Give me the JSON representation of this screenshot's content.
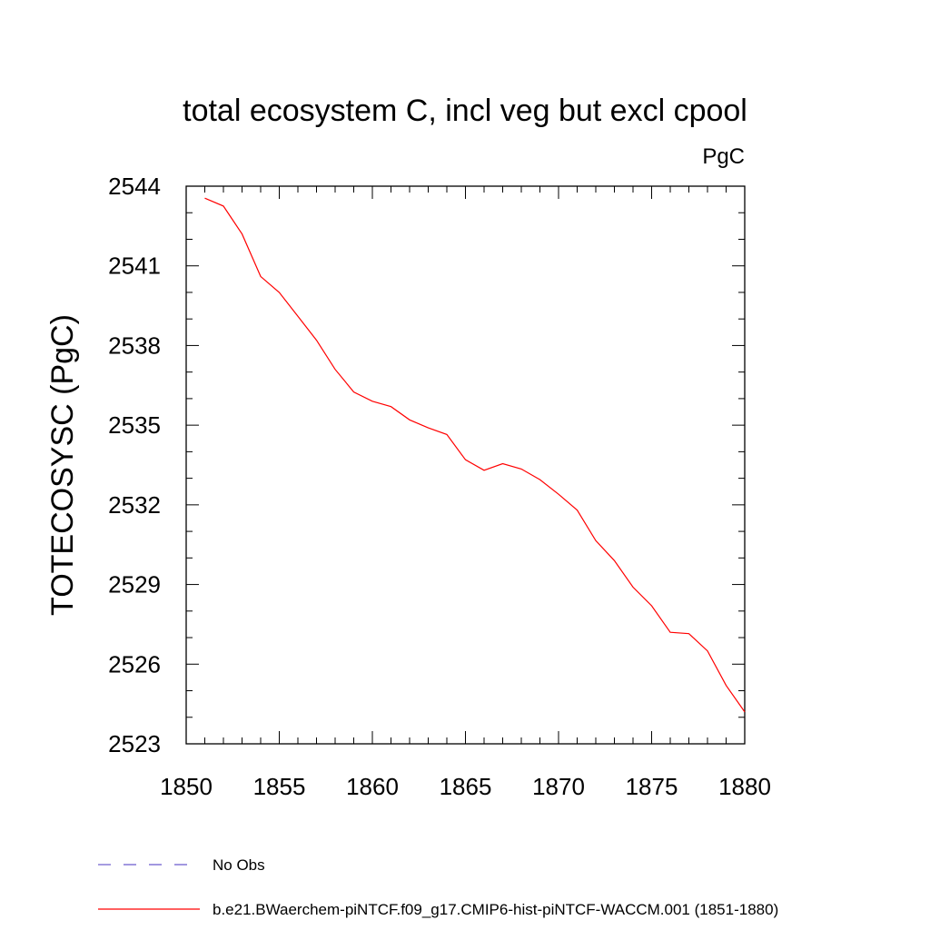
{
  "chart_data": {
    "type": "line",
    "title": "total ecosystem C, incl veg but excl cpool",
    "units_label": "PgC",
    "xlabel": "",
    "ylabel": "TOTECOSYSC  (PgC)",
    "xlim": [
      1850,
      1880
    ],
    "ylim": [
      2523,
      2544
    ],
    "xticks": [
      1850,
      1855,
      1860,
      1865,
      1870,
      1875,
      1880
    ],
    "yticks": [
      2523,
      2526,
      2529,
      2532,
      2535,
      2538,
      2541,
      2544
    ],
    "grid": false,
    "legend_position": "bottom-left",
    "series": [
      {
        "name": "No Obs",
        "style": "dashed",
        "color": "#6a5acd",
        "x": [],
        "y": []
      },
      {
        "name": "b.e21.BWaerchem-piNTCF.f09_g17.CMIP6-hist-piNTCF-WACCM.001 (1851-1880)",
        "style": "solid",
        "color": "#ff0000",
        "x": [
          1851,
          1852,
          1853,
          1854,
          1855,
          1856,
          1857,
          1858,
          1859,
          1860,
          1861,
          1862,
          1863,
          1864,
          1865,
          1866,
          1867,
          1868,
          1869,
          1870,
          1871,
          1872,
          1873,
          1874,
          1875,
          1876,
          1877,
          1878,
          1879,
          1880
        ],
        "y": [
          2543.55,
          2543.25,
          2542.2,
          2540.6,
          2540.0,
          2539.1,
          2538.2,
          2537.1,
          2536.25,
          2535.9,
          2535.7,
          2535.2,
          2534.9,
          2534.65,
          2533.7,
          2533.3,
          2533.55,
          2533.35,
          2532.95,
          2532.4,
          2531.8,
          2530.65,
          2529.9,
          2528.9,
          2528.2,
          2527.2,
          2527.15,
          2526.5,
          2525.2,
          2524.2
        ]
      }
    ]
  }
}
